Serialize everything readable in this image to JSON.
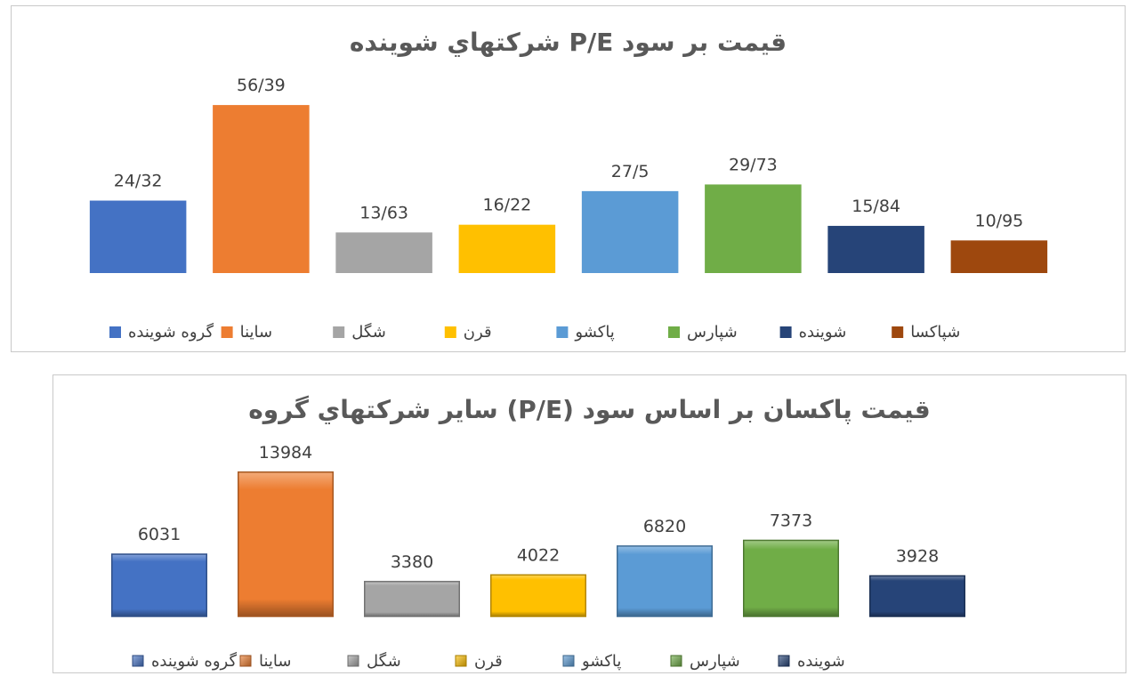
{
  "charts": [
    {
      "title": "قيمت بر سود   P/E   شركتهاي شوينده",
      "chart_data": {
        "type": "bar",
        "categories": [
          "گروه شوینده",
          "ساینا",
          "شگل",
          "قرن",
          "پاکشو",
          "شپارس",
          "شوینده",
          "شپاکسا"
        ],
        "values": [
          24.32,
          56.39,
          13.63,
          16.22,
          27.5,
          29.73,
          15.84,
          10.95
        ],
        "value_labels": [
          "24/32",
          "56/39",
          "13/63",
          "16/22",
          "27/5",
          "29/73",
          "15/84",
          "10/95"
        ],
        "colors": [
          "#4472C4",
          "#ED7D31",
          "#A5A5A5",
          "#FFC000",
          "#5B9BD5",
          "#70AD47",
          "#264478",
          "#9E480E"
        ],
        "legend_position": "bottom",
        "grid": false,
        "xlabel": "",
        "ylabel": "",
        "ylim": [
          0,
          60
        ]
      }
    },
    {
      "title": "قيمت پاكسان بر اساس سود (P/E) ساير شركتهاي گروه",
      "chart_data": {
        "type": "bar",
        "categories": [
          "گروه شوینده",
          "ساینا",
          "شگل",
          "قرن",
          "پاکشو",
          "شپارس",
          "شوینده"
        ],
        "values": [
          6031,
          13984,
          3380,
          4022,
          6820,
          7373,
          3928
        ],
        "value_labels": [
          "6031",
          "13984",
          "3380",
          "4022",
          "6820",
          "7373",
          "3928"
        ],
        "colors": [
          "#4472C4",
          "#ED7D31",
          "#A5A5A5",
          "#FFC000",
          "#5B9BD5",
          "#70AD47",
          "#264478"
        ],
        "style": "bevel",
        "legend_position": "bottom",
        "grid": false,
        "xlabel": "",
        "ylabel": "",
        "ylim": [
          0,
          15000
        ]
      }
    }
  ]
}
